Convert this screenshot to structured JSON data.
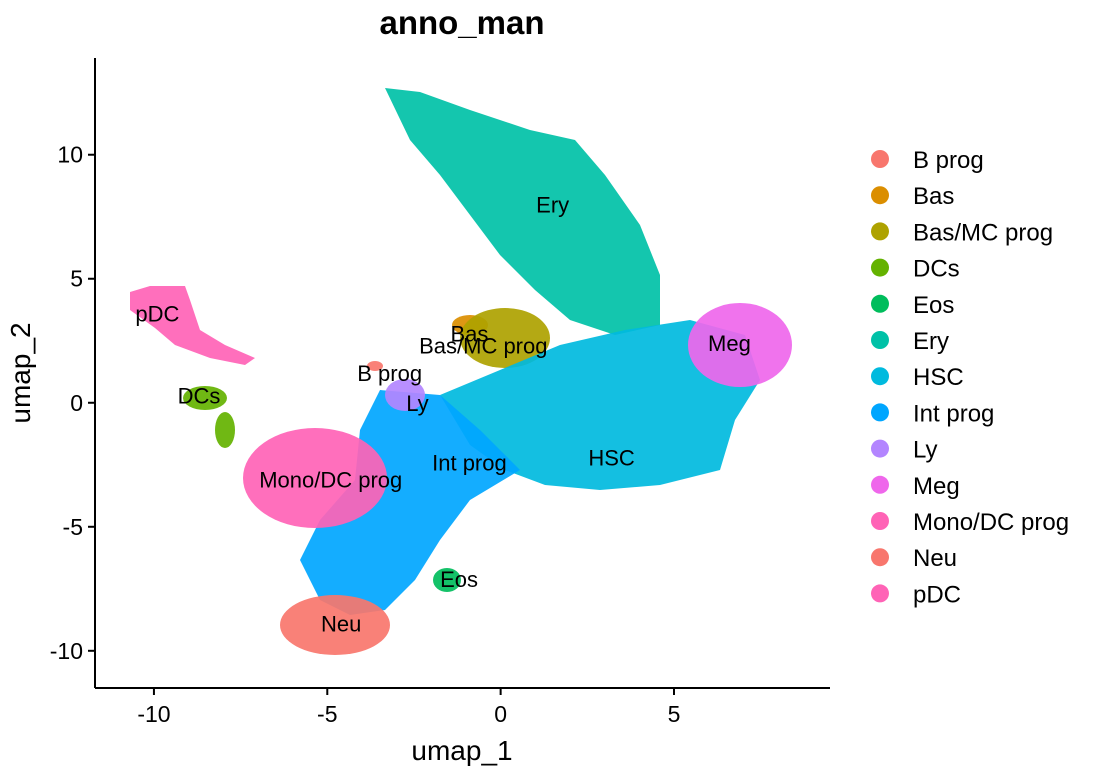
{
  "chart_data": {
    "type": "scatter",
    "title": "anno_man",
    "xlabel": "umap_1",
    "ylabel": "umap_2",
    "xlim": [
      -11.7,
      9.5
    ],
    "ylim": [
      -11.5,
      13.9
    ],
    "x_ticks": [
      -10,
      -5,
      0,
      5
    ],
    "x_tick_labels": [
      "-10",
      "-5",
      "0",
      "5"
    ],
    "y_ticks": [
      -10,
      -5,
      0,
      5,
      10
    ],
    "y_tick_labels": [
      "-10",
      "-5",
      "0",
      "5",
      "10"
    ],
    "grid": false,
    "legend_position": "right",
    "series": [
      {
        "name": "B prog",
        "color": "#F8766D",
        "label_pos": [
          -3.2,
          1.2
        ]
      },
      {
        "name": "Bas",
        "color": "#DB8E00",
        "label_pos": [
          -0.9,
          2.8
        ]
      },
      {
        "name": "Bas/MC prog",
        "color": "#AEA200",
        "label_pos": [
          -0.5,
          2.3
        ]
      },
      {
        "name": "DCs",
        "color": "#64B200",
        "label_pos": [
          -8.7,
          0.3
        ]
      },
      {
        "name": "Eos",
        "color": "#00BD5C",
        "label_pos": [
          -1.2,
          -7.1
        ]
      },
      {
        "name": "Ery",
        "color": "#00C1A7",
        "label_pos": [
          1.5,
          8.0
        ]
      },
      {
        "name": "HSC",
        "color": "#00BADE",
        "label_pos": [
          3.2,
          -2.2
        ]
      },
      {
        "name": "Int prog",
        "color": "#00A6FF",
        "label_pos": [
          -0.9,
          -2.4
        ]
      },
      {
        "name": "Ly",
        "color": "#B385FF",
        "label_pos": [
          -2.4,
          0.0
        ]
      },
      {
        "name": "Meg",
        "color": "#EF67EB",
        "label_pos": [
          6.6,
          2.4
        ]
      },
      {
        "name": "Mono/DC prog",
        "color": "#FF63B6",
        "label_pos": [
          -4.9,
          -3.1
        ]
      },
      {
        "name": "Neu",
        "color": "#F8766D",
        "label_pos": [
          -4.6,
          -8.9
        ]
      },
      {
        "name": "pDC",
        "color": "#FF63B6",
        "label_pos": [
          -9.9,
          3.6
        ]
      }
    ]
  }
}
